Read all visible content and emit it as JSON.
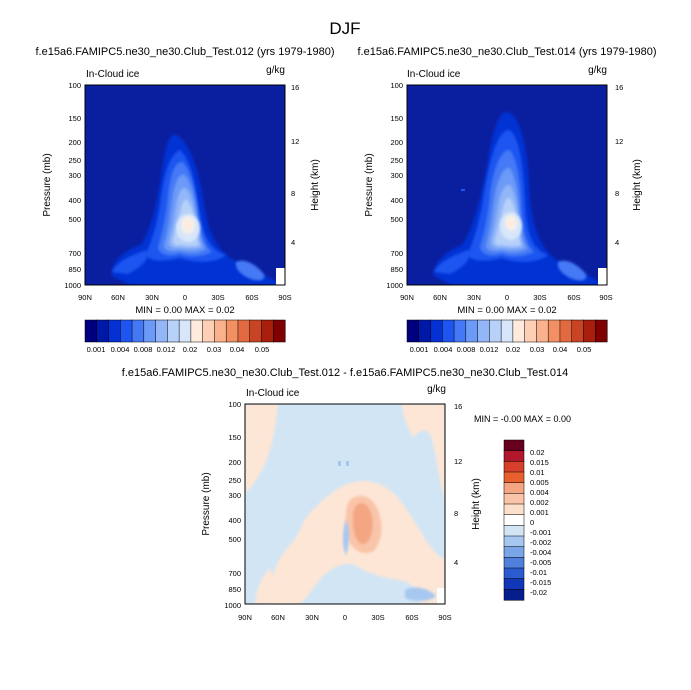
{
  "figure": {
    "title": "DJF"
  },
  "chart_data": [
    {
      "type": "heatmap",
      "title": "f.e15a6.FAMIPC5.ne30_ne30.Club_Test.012 (yrs 1979-1980)",
      "left_label": "In-Cloud ice",
      "right_label": "g/kg",
      "ylabel": "Pressure (mb)",
      "ylabel_right": "Height (km)",
      "x_ticks": [
        "90N",
        "60N",
        "30N",
        "0",
        "30S",
        "60S",
        "90S"
      ],
      "y_ticks": [
        "100",
        "150",
        "200",
        "250",
        "300",
        "400",
        "500",
        "700",
        "850",
        "1000"
      ],
      "y2_ticks": [
        "16",
        "12",
        "8",
        "4"
      ],
      "min_max_text": "MIN =  0.00  MAX =  0.02",
      "levels": [
        "0.001",
        "0.004",
        "0.008",
        "0.012",
        "0.02",
        "0.03",
        "0.04",
        "0.05"
      ],
      "ylim": [
        1000,
        100
      ],
      "colormap": [
        "#00007F",
        "#0018A8",
        "#0531D4",
        "#1E55F0",
        "#4479F5",
        "#6C9AF7",
        "#92B6F8",
        "#B7D1F9",
        "#D7E6FA",
        "#FFEADD",
        "#FDCFB4",
        "#F9B28C",
        "#F28F63",
        "#E36A40",
        "#C94424",
        "#A81F0E",
        "#7F0000"
      ]
    },
    {
      "type": "heatmap",
      "title": "f.e15a6.FAMIPC5.ne30_ne30.Club_Test.014 (yrs 1979-1980)",
      "left_label": "In-Cloud ice",
      "right_label": "g/kg",
      "ylabel": "Pressure (mb)",
      "ylabel_right": "Height (km)",
      "x_ticks": [
        "90N",
        "60N",
        "30N",
        "0",
        "30S",
        "60S",
        "90S"
      ],
      "y_ticks": [
        "100",
        "150",
        "200",
        "250",
        "300",
        "400",
        "500",
        "700",
        "850",
        "1000"
      ],
      "y2_ticks": [
        "16",
        "12",
        "8",
        "4"
      ],
      "min_max_text": "MIN =  0.00  MAX =  0.02",
      "levels": [
        "0.001",
        "0.004",
        "0.008",
        "0.012",
        "0.02",
        "0.03",
        "0.04",
        "0.05"
      ],
      "ylim": [
        1000,
        100
      ]
    },
    {
      "type": "heatmap",
      "title": "f.e15a6.FAMIPC5.ne30_ne30.Club_Test.012 - f.e15a6.FAMIPC5.ne30_ne30.Club_Test.014",
      "left_label": "In-Cloud ice",
      "right_label": "g/kg",
      "ylabel": "Pressure (mb)",
      "ylabel_right": "Height (km)",
      "x_ticks": [
        "90N",
        "60N",
        "30N",
        "0",
        "30S",
        "60S",
        "90S"
      ],
      "y_ticks": [
        "100",
        "150",
        "200",
        "250",
        "300",
        "400",
        "500",
        "700",
        "850",
        "1000"
      ],
      "y2_ticks": [
        "16",
        "12",
        "8",
        "4"
      ],
      "min_max_text": "MIN = -0.00  MAX =  0.00",
      "levels": [
        "0.02",
        "0.015",
        "0.01",
        "0.005",
        "0.004",
        "0.002",
        "0.001",
        "0",
        "-0.001",
        "-0.002",
        "-0.004",
        "-0.005",
        "-0.01",
        "-0.015",
        "-0.02"
      ],
      "ylim": [
        1000,
        100
      ],
      "colormap": [
        "#67001F",
        "#B2182B",
        "#D6402A",
        "#E8602E",
        "#F4A582",
        "#F9C4A8",
        "#FDE0CC",
        "#FFFFFF",
        "#D1E5F5",
        "#A6C8F0",
        "#7AA6E8",
        "#4F80DC",
        "#2A5BD0",
        "#1236B8",
        "#051E8C"
      ]
    }
  ]
}
